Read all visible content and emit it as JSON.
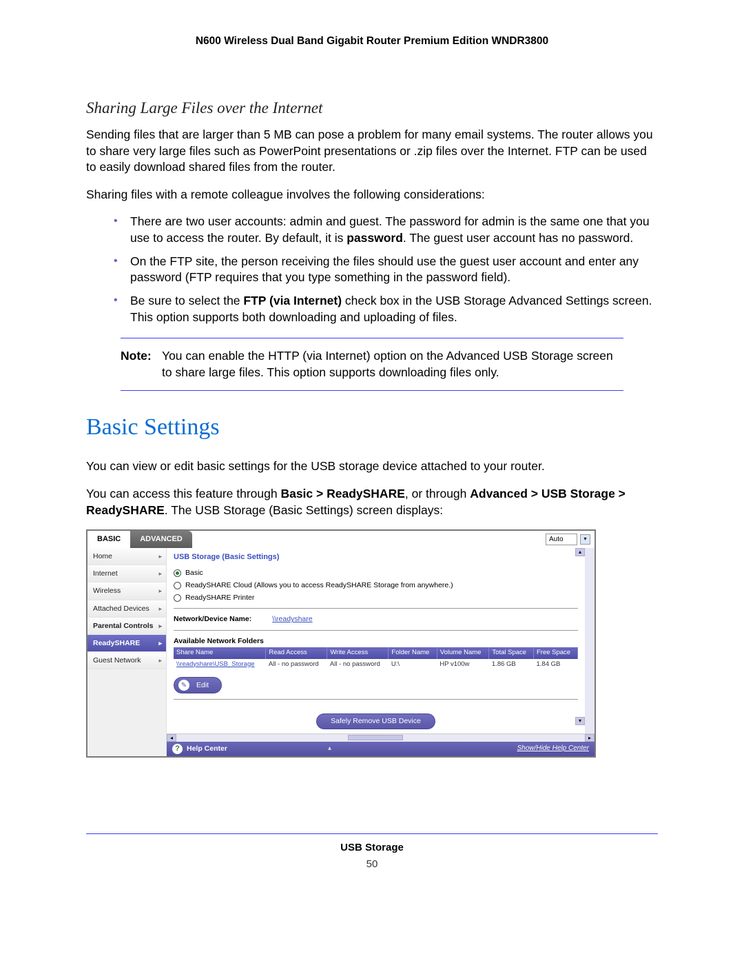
{
  "product_title": "N600 Wireless Dual Band Gigabit Router Premium Edition WNDR3800",
  "section_heading": "Sharing Large Files over the Internet",
  "para1": "Sending files that are larger than 5 MB can pose a problem for many email systems. The router allows you to share very large files such as PowerPoint presentations or .zip files over the Internet. FTP can be used to easily download shared files from the router.",
  "para2": "Sharing files with a remote colleague involves the following considerations:",
  "bullets": {
    "b1_a": "There are two user accounts: admin and guest. The password for admin is the same one that you use to access the router. By default, it is ",
    "b1_bold": "password",
    "b1_b": ". The guest user account has no password.",
    "b2": "On the FTP site, the person receiving the files should use the guest user account and enter any password (FTP requires that you type something in the password field).",
    "b3_a": "Be sure to select the ",
    "b3_bold": "FTP (via Internet)",
    "b3_b": " check box in the USB Storage Advanced Settings screen. This option supports both downloading and uploading of files."
  },
  "note": {
    "label": "Note:",
    "text": "You can enable the HTTP (via Internet) option on the Advanced USB Storage screen to share large files. This option supports downloading files only."
  },
  "main_heading": "Basic Settings",
  "para3": "You can view or edit basic settings for the USB storage device attached to your router.",
  "para4_a": "You can access this feature through ",
  "para4_b1": "Basic > ReadySHARE",
  "para4_c": ", or through ",
  "para4_b2": "Advanced > USB Storage > ReadySHARE",
  "para4_d": ". The USB Storage (Basic Settings) screen displays:",
  "ui": {
    "tabs": {
      "basic": "BASIC",
      "advanced": "ADVANCED"
    },
    "auto_label": "Auto",
    "sidebar": [
      {
        "label": "Home"
      },
      {
        "label": "Internet"
      },
      {
        "label": "Wireless"
      },
      {
        "label": "Attached Devices"
      },
      {
        "label": "Parental Controls",
        "bold": true
      },
      {
        "label": "ReadySHARE",
        "active": true
      },
      {
        "label": "Guest Network"
      }
    ],
    "panel_title": "USB Storage (Basic Settings)",
    "radios": {
      "r1": "Basic",
      "r2": "ReadySHARE Cloud (Allows you to access ReadySHARE Storage from anywhere.)",
      "r3": "ReadySHARE Printer"
    },
    "device_label": "Network/Device Name:",
    "device_value": "\\\\readyshare",
    "folders_title": "Available Network Folders",
    "table": {
      "headers": [
        "Share Name",
        "Read Access",
        "Write Access",
        "Folder Name",
        "Volume Name",
        "Total Space",
        "Free Space"
      ],
      "row": [
        "\\\\readyshare\\USB_Storage",
        "All - no password",
        "All - no password",
        "U:\\",
        "HP v100w",
        "1.86 GB",
        "1.84 GB"
      ]
    },
    "edit_btn": "Edit",
    "remove_btn": "Safely Remove USB Device",
    "help_label": "Help Center",
    "showhide": "Show/Hide Help Center"
  },
  "footer": {
    "title": "USB Storage",
    "page": "50"
  }
}
